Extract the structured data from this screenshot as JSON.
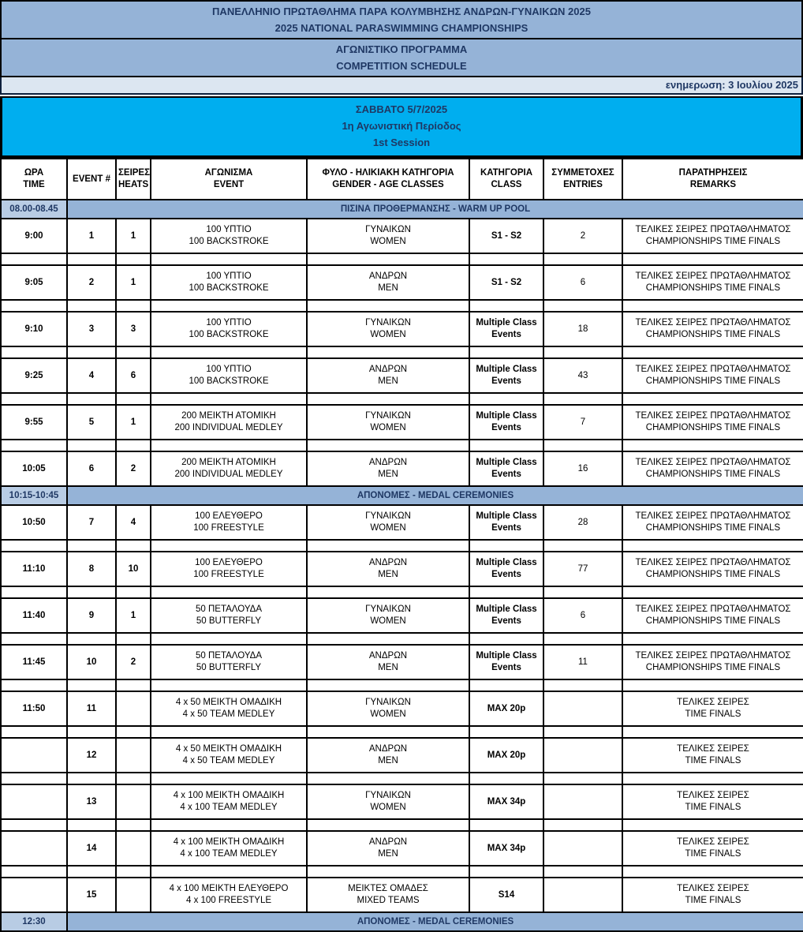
{
  "colors": {
    "band_blue": "#95B3D7",
    "section_time_blue": "#B8CCE4",
    "update_row_blue": "#DCE6F1",
    "session_cyan": "#00AEEF",
    "navy_text": "#1F3864"
  },
  "header": {
    "title_el": "ΠΑΝΕΛΛΗΝΙΟ ΠΡΩΤΑΘΛΗΜΑ ΠΑΡΑ ΚΟΛΥΜΒΗΣΗΣ ΑΝΔΡΩΝ-ΓΥΝΑΙΚΩΝ 2025",
    "title_en": "2025 NATIONAL PARASWIMMING CHAMPIONSHIPS",
    "subtitle_el": "ΑΓΩΝΙΣΤΙΚΟ ΠΡΟΓΡΑΜΜΑ",
    "subtitle_en": "COMPETITION SCHEDULE",
    "updated": "ενημερωση: 3 Ιουλίου 2025"
  },
  "session_banner": {
    "date": "ΣΑΒΒΑΤΟ 5/7/2025",
    "session_el": "1η Αγωνιστική Περίοδος",
    "session_en": "1st Session"
  },
  "columns": [
    {
      "l1": "ΩΡΑ",
      "l2": "TIME"
    },
    {
      "l1": "EVENT #",
      "l2": ""
    },
    {
      "l1": "ΣΕΙΡΕΣ",
      "l2": "HEATS"
    },
    {
      "l1": "ΑΓΩΝΙΣΜΑ",
      "l2": "EVENT"
    },
    {
      "l1": "ΦΥΛΟ - ΗΛΙΚΙΑΚΗ ΚΑΤΗΓΟΡΙΑ",
      "l2": "GENDER - AGE CLASSES"
    },
    {
      "l1": "ΚΑΤΗΓΟΡΙΑ",
      "l2": "CLASS"
    },
    {
      "l1": "ΣΥΜΜΕΤΟΧΕΣ",
      "l2": "ENTRIES"
    },
    {
      "l1": "ΠΑΡΑΤΗΡΗΣΕΙΣ",
      "l2": "REMARKS"
    }
  ],
  "rows": [
    {
      "type": "section",
      "time": "08.00-08.45",
      "label": "ΠΙΣΙΝΑ ΠΡΟΘΕΡΜΑΝΣΗΣ  - WARM UP POOL"
    },
    {
      "type": "event",
      "time": "9:00",
      "event_no": "1",
      "heats": "1",
      "event_el": "100 ΥΠΤΙΟ",
      "event_en": "100 BACKSTROKE",
      "gender_el": "ΓΥΝΑΙΚΩΝ",
      "gender_en": "WOMEN",
      "class": "S1 - S2",
      "entries": "2",
      "remarks_el": "ΤΕΛΙΚΕΣ ΣΕΙΡΕΣ ΠΡΩΤΑΘΛΗΜΑΤΟΣ",
      "remarks_en": "CHAMPIONSHIPS TIME FINALS"
    },
    {
      "type": "spacer"
    },
    {
      "type": "event",
      "time": "9:05",
      "event_no": "2",
      "heats": "1",
      "event_el": "100 ΥΠΤΙΟ",
      "event_en": "100 BACKSTROKE",
      "gender_el": "ΑΝΔΡΩΝ",
      "gender_en": "MEN",
      "class": "S1 - S2",
      "entries": "6",
      "remarks_el": "ΤΕΛΙΚΕΣ ΣΕΙΡΕΣ ΠΡΩΤΑΘΛΗΜΑΤΟΣ",
      "remarks_en": "CHAMPIONSHIPS TIME FINALS"
    },
    {
      "type": "spacer"
    },
    {
      "type": "event",
      "time": "9:10",
      "event_no": "3",
      "heats": "3",
      "event_el": "100 ΥΠΤΙΟ",
      "event_en": "100 BACKSTROKE",
      "gender_el": "ΓΥΝΑΙΚΩΝ",
      "gender_en": "WOMEN",
      "class": "Multiple Class Events",
      "entries": "18",
      "remarks_el": "ΤΕΛΙΚΕΣ ΣΕΙΡΕΣ ΠΡΩΤΑΘΛΗΜΑΤΟΣ",
      "remarks_en": "CHAMPIONSHIPS TIME FINALS"
    },
    {
      "type": "spacer"
    },
    {
      "type": "event",
      "time": "9:25",
      "event_no": "4",
      "heats": "6",
      "event_el": "100 ΥΠΤΙΟ",
      "event_en": "100 BACKSTROKE",
      "gender_el": "ΑΝΔΡΩΝ",
      "gender_en": "MEN",
      "class": "Multiple Class Events",
      "entries": "43",
      "remarks_el": "ΤΕΛΙΚΕΣ ΣΕΙΡΕΣ ΠΡΩΤΑΘΛΗΜΑΤΟΣ",
      "remarks_en": "CHAMPIONSHIPS TIME FINALS"
    },
    {
      "type": "spacer"
    },
    {
      "type": "event",
      "time": "9:55",
      "event_no": "5",
      "heats": "1",
      "event_el": "200 ΜΕΙΚΤΗ ΑΤΟΜΙΚΗ",
      "event_en": "200 INDIVIDUAL MEDLEY",
      "gender_el": "ΓΥΝΑΙΚΩΝ",
      "gender_en": "WOMEN",
      "class": "Multiple Class Events",
      "entries": "7",
      "remarks_el": "ΤΕΛΙΚΕΣ ΣΕΙΡΕΣ ΠΡΩΤΑΘΛΗΜΑΤΟΣ",
      "remarks_en": "CHAMPIONSHIPS TIME FINALS"
    },
    {
      "type": "spacer"
    },
    {
      "type": "event",
      "time": "10:05",
      "event_no": "6",
      "heats": "2",
      "event_el": "200 ΜΕΙΚΤΗ ΑΤΟΜΙΚΗ",
      "event_en": "200 INDIVIDUAL MEDLEY",
      "gender_el": "ΑΝΔΡΩΝ",
      "gender_en": "MEN",
      "class": "Multiple Class Events",
      "entries": "16",
      "remarks_el": "ΤΕΛΙΚΕΣ ΣΕΙΡΕΣ ΠΡΩΤΑΘΛΗΜΑΤΟΣ",
      "remarks_en": "CHAMPIONSHIPS TIME FINALS"
    },
    {
      "type": "section",
      "time": "10:15-10:45",
      "label": "ΑΠΟΝΟΜΕΣ - MEDAL CEREMONIES"
    },
    {
      "type": "event",
      "time": "10:50",
      "event_no": "7",
      "heats": "4",
      "event_el": "100 ΕΛΕΥΘΕΡΟ",
      "event_en": "100 FREESTYLE",
      "gender_el": "ΓΥΝΑΙΚΩΝ",
      "gender_en": "WOMEN",
      "class": "Multiple Class Events",
      "entries": "28",
      "remarks_el": "ΤΕΛΙΚΕΣ ΣΕΙΡΕΣ ΠΡΩΤΑΘΛΗΜΑΤΟΣ",
      "remarks_en": "CHAMPIONSHIPS TIME FINALS"
    },
    {
      "type": "spacer"
    },
    {
      "type": "event",
      "time": "11:10",
      "event_no": "8",
      "heats": "10",
      "event_el": "100 ΕΛΕΥΘΕΡΟ",
      "event_en": "100 FREESTYLE",
      "gender_el": "ΑΝΔΡΩΝ",
      "gender_en": "MEN",
      "class": "Multiple Class Events",
      "entries": "77",
      "remarks_el": "ΤΕΛΙΚΕΣ ΣΕΙΡΕΣ ΠΡΩΤΑΘΛΗΜΑΤΟΣ",
      "remarks_en": "CHAMPIONSHIPS TIME FINALS"
    },
    {
      "type": "spacer"
    },
    {
      "type": "event",
      "time": "11:40",
      "event_no": "9",
      "heats": "1",
      "event_el": "50 ΠΕΤΑΛΟΥΔΑ",
      "event_en": "50 BUTTERFLY",
      "gender_el": "ΓΥΝΑΙΚΩΝ",
      "gender_en": "WOMEN",
      "class": "Multiple Class Events",
      "entries": "6",
      "remarks_el": "ΤΕΛΙΚΕΣ ΣΕΙΡΕΣ ΠΡΩΤΑΘΛΗΜΑΤΟΣ",
      "remarks_en": "CHAMPIONSHIPS TIME FINALS"
    },
    {
      "type": "spacer"
    },
    {
      "type": "event",
      "time": "11:45",
      "event_no": "10",
      "heats": "2",
      "event_el": "50 ΠΕΤΑΛΟΥΔΑ",
      "event_en": "50 BUTTERFLY",
      "gender_el": "ΑΝΔΡΩΝ",
      "gender_en": "MEN",
      "class": "Multiple Class Events",
      "entries": "11",
      "remarks_el": "ΤΕΛΙΚΕΣ ΣΕΙΡΕΣ ΠΡΩΤΑΘΛΗΜΑΤΟΣ",
      "remarks_en": "CHAMPIONSHIPS TIME FINALS"
    },
    {
      "type": "spacer"
    },
    {
      "type": "event",
      "time": "11:50",
      "event_no": "11",
      "heats": "",
      "event_el": "4 x 50 ΜΕΙΚΤΗ ΟΜΑΔΙΚΗ",
      "event_en": "4 x 50 TEAM MEDLEY",
      "gender_el": "ΓΥΝΑΙΚΩΝ",
      "gender_en": "WOMEN",
      "class": "MAX 20p",
      "entries": "",
      "remarks_el": "ΤΕΛΙΚΕΣ ΣΕΙΡΕΣ",
      "remarks_en": "TIME FINALS"
    },
    {
      "type": "spacer"
    },
    {
      "type": "event",
      "time": "",
      "event_no": "12",
      "heats": "",
      "event_el": "4 x 50 ΜΕΙΚΤΗ ΟΜΑΔΙΚΗ",
      "event_en": "4 x 50 TEAM MEDLEY",
      "gender_el": "ΑΝΔΡΩΝ",
      "gender_en": "MEN",
      "class": "MAX 20p",
      "entries": "",
      "remarks_el": "ΤΕΛΙΚΕΣ ΣΕΙΡΕΣ",
      "remarks_en": "TIME FINALS"
    },
    {
      "type": "spacer"
    },
    {
      "type": "event",
      "time": "",
      "event_no": "13",
      "heats": "",
      "event_el": "4 x 100 ΜΕΙΚΤΗ ΟΜΑΔΙΚΗ",
      "event_en": "4 x 100 TEAM MEDLEY",
      "gender_el": "ΓΥΝΑΙΚΩΝ",
      "gender_en": "WOMEN",
      "class": "MAX 34p",
      "entries": "",
      "remarks_el": "ΤΕΛΙΚΕΣ ΣΕΙΡΕΣ",
      "remarks_en": "TIME FINALS"
    },
    {
      "type": "spacer"
    },
    {
      "type": "event",
      "time": "",
      "event_no": "14",
      "heats": "",
      "event_el": "4 x 100 ΜΕΙΚΤΗ ΟΜΑΔΙΚΗ",
      "event_en": "4 x 100 TEAM MEDLEY",
      "gender_el": "ΑΝΔΡΩΝ",
      "gender_en": "MEN",
      "class": "MAX 34p",
      "entries": "",
      "remarks_el": "ΤΕΛΙΚΕΣ ΣΕΙΡΕΣ",
      "remarks_en": "TIME FINALS"
    },
    {
      "type": "spacer"
    },
    {
      "type": "event",
      "time": "",
      "event_no": "15",
      "heats": "",
      "event_el": "4 x 100 ΜΕΙΚΤΗ ΕΛΕΥΘΕΡΟ",
      "event_en": "4 x 100 FREESTYLE",
      "gender_el": "ΜΕΙΚΤΕΣ ΟΜΑΔΕΣ",
      "gender_en": "MIXED TEAMS",
      "class": "S14",
      "entries": "",
      "remarks_el": "ΤΕΛΙΚΕΣ ΣΕΙΡΕΣ",
      "remarks_en": "TIME FINALS"
    },
    {
      "type": "section",
      "time": "12:30",
      "label": "ΑΠΟΝΟΜΕΣ - MEDAL CEREMONIES"
    }
  ]
}
